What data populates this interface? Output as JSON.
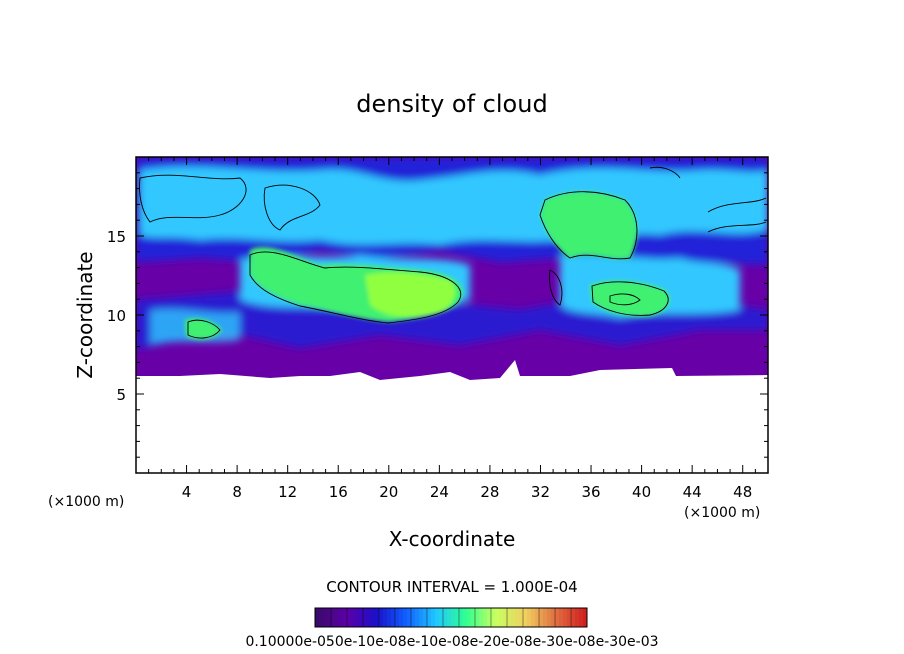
{
  "chart_data": {
    "type": "heatmap",
    "title": "density of cloud",
    "xlabel": "X-coordinate",
    "ylabel": "Z-coordinate",
    "x_unit": "(×1000 m)",
    "z_unit": "(×1000 m)",
    "xlim": [
      0,
      50
    ],
    "ylim": [
      0,
      20
    ],
    "x_ticks": [
      4,
      8,
      12,
      16,
      20,
      24,
      28,
      32,
      36,
      40,
      44,
      48
    ],
    "y_ticks": [
      5,
      10,
      15
    ],
    "cloud_base_approx": 6.2,
    "cloud_top_approx": 19.5,
    "contour_interval_text": "CONTOUR INTERVAL = 1.000E-04",
    "colorbar_labels_text": "0.10000e-050e-10e-08e-10e-08e-20e-08e-30e-08e-30e-03",
    "colorbar_colors": [
      "#3a0a6a",
      "#5c00a8",
      "#1a10c8",
      "#1060ff",
      "#20c8ff",
      "#30ff90",
      "#c8ff60",
      "#f0d060",
      "#e07040",
      "#d02020"
    ],
    "region_colors": {
      "background": "#ffffff",
      "low_density": "#6800a8",
      "medium_low": "#2020d8",
      "medium": "#30c8ff",
      "high": "#40f070",
      "peak": "#90ff40"
    }
  }
}
